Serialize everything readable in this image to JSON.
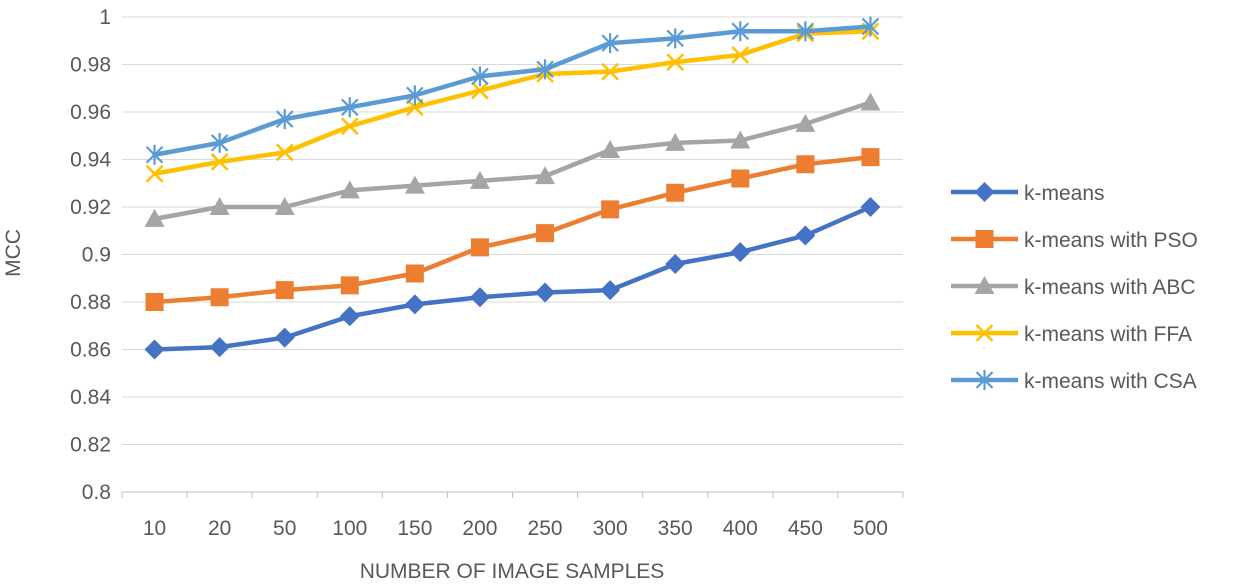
{
  "chart_data": {
    "type": "line",
    "title": "",
    "xlabel": "NUMBER OF IMAGE SAMPLES",
    "ylabel": "MCC",
    "ylim": [
      0.8,
      1.0
    ],
    "ytick_step": 0.02,
    "ytick_labels": [
      "0.8",
      "0.82",
      "0.84",
      "0.86",
      "0.88",
      "0.9",
      "0.92",
      "0.94",
      "0.96",
      "0.98",
      "1"
    ],
    "grid": "horizontal",
    "legend_position": "right",
    "categories": [
      "10",
      "20",
      "50",
      "100",
      "150",
      "200",
      "250",
      "300",
      "350",
      "400",
      "450",
      "500"
    ],
    "series": [
      {
        "name": "k-means",
        "color": "#4472C4",
        "marker": "diamond",
        "values": [
          0.86,
          0.861,
          0.865,
          0.874,
          0.879,
          0.882,
          0.884,
          0.885,
          0.896,
          0.901,
          0.908,
          0.92
        ]
      },
      {
        "name": "k-means with PSO",
        "color": "#ED7D31",
        "marker": "square",
        "values": [
          0.88,
          0.882,
          0.885,
          0.887,
          0.892,
          0.903,
          0.909,
          0.919,
          0.926,
          0.932,
          0.938,
          0.941
        ]
      },
      {
        "name": "k-means with ABC",
        "color": "#A5A5A5",
        "marker": "triangle",
        "values": [
          0.915,
          0.92,
          0.92,
          0.927,
          0.929,
          0.931,
          0.933,
          0.944,
          0.947,
          0.948,
          0.955,
          0.964
        ]
      },
      {
        "name": "k-means with FFA",
        "color": "#FFC000",
        "marker": "x",
        "values": [
          0.934,
          0.939,
          0.943,
          0.954,
          0.962,
          0.969,
          0.976,
          0.977,
          0.981,
          0.984,
          0.993,
          0.994
        ]
      },
      {
        "name": "k-means with CSA",
        "color": "#5B9BD5",
        "marker": "star",
        "values": [
          0.942,
          0.947,
          0.957,
          0.962,
          0.967,
          0.975,
          0.978,
          0.989,
          0.991,
          0.994,
          0.994,
          0.996
        ]
      }
    ]
  }
}
